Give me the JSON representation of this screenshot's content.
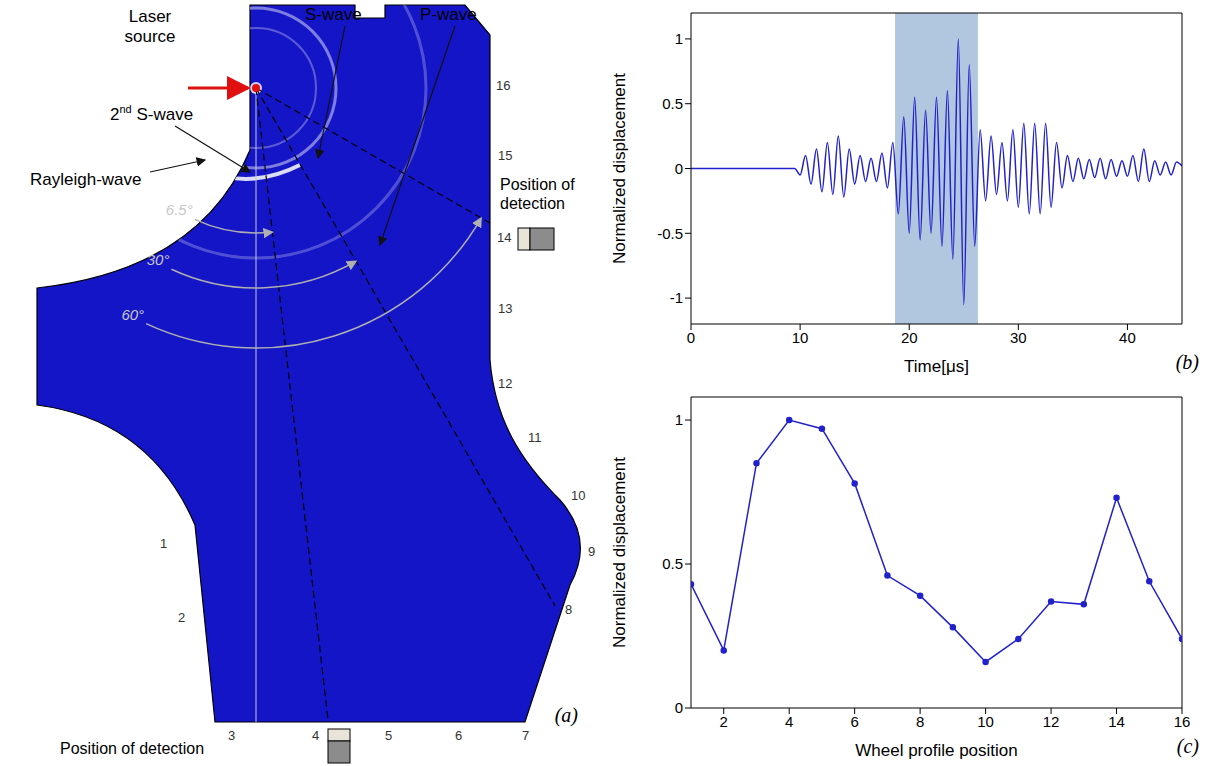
{
  "diagram": {
    "panel_label": "(a)",
    "laser_source": "Laser source",
    "waves": {
      "s_wave": "S-wave",
      "p_wave": "P-wave",
      "second_s_wave": "2nd S-wave",
      "rayleigh_wave": "Rayleigh-wave"
    },
    "angles": [
      {
        "value": 6.5,
        "label": "6.5°"
      },
      {
        "value": 30,
        "label": "30°"
      },
      {
        "value": 60,
        "label": "60°"
      }
    ],
    "profile_positions": [
      1,
      2,
      3,
      4,
      5,
      6,
      7,
      8,
      9,
      10,
      11,
      12,
      13,
      14,
      15,
      16
    ],
    "detection_labels": [
      "Position of detection",
      "Position of detection"
    ]
  },
  "chart_data": [
    {
      "panel_label": "(b)",
      "type": "line",
      "color": "#2222cc",
      "x_label": "Time[μs]",
      "y_label": "Normalized displacement",
      "x": [
        0,
        0.5,
        1,
        1.5,
        2,
        2.5,
        3,
        3.5,
        4,
        4.5,
        5,
        5.5,
        6,
        6.5,
        7,
        7.5,
        8,
        8.5,
        9,
        9.5,
        10,
        10.5,
        11,
        11.5,
        12,
        12.5,
        13,
        13.5,
        14,
        14.5,
        15,
        15.5,
        16,
        16.5,
        17,
        17.5,
        18,
        18.5,
        19,
        19.5,
        20,
        20.5,
        21,
        21.5,
        22,
        22.5,
        23,
        23.5,
        24,
        24.5,
        25,
        25.5,
        26,
        26.5,
        27,
        27.5,
        28,
        28.5,
        29,
        29.5,
        30,
        30.5,
        31,
        31.5,
        32,
        32.5,
        33,
        33.5,
        34,
        34.5,
        35,
        35.5,
        36,
        36.5,
        37,
        37.5,
        38,
        38.5,
        39,
        39.5,
        40,
        40.5,
        41,
        41.5,
        42,
        42.5,
        43,
        43.5,
        44,
        44.5,
        45
      ],
      "values": [
        0,
        0,
        0,
        0,
        0,
        0,
        0,
        0,
        0,
        0,
        0,
        0,
        0,
        0,
        0,
        0,
        0,
        0,
        0,
        0,
        -0.05,
        0.1,
        -0.12,
        0.15,
        -0.18,
        0.2,
        -0.2,
        0.25,
        -0.22,
        0.15,
        -0.12,
        0.1,
        -0.1,
        0.08,
        -0.1,
        0.12,
        -0.15,
        0.2,
        -0.35,
        0.4,
        -0.5,
        0.55,
        -0.55,
        0.45,
        -0.5,
        0.55,
        -0.6,
        0.6,
        -0.7,
        1.0,
        -1.05,
        0.8,
        -0.6,
        0.3,
        -0.25,
        0.25,
        -0.2,
        0.2,
        -0.25,
        0.3,
        -0.3,
        0.35,
        -0.35,
        0.35,
        -0.35,
        0.35,
        -0.3,
        0.2,
        -0.15,
        0.1,
        -0.1,
        0.08,
        -0.08,
        0.07,
        -0.07,
        0.08,
        -0.08,
        0.07,
        -0.06,
        0.06,
        -0.06,
        0.1,
        -0.1,
        0.15,
        -0.1,
        0.06,
        -0.05,
        0.05,
        -0.05,
        0.05,
        0.02
      ],
      "highlight": [
        18.7,
        26.3
      ],
      "xlim": [
        0,
        45
      ],
      "xticks": [
        0,
        10,
        20,
        30,
        40
      ],
      "ylim": [
        -1.2,
        1.2
      ],
      "yticks": [
        -1,
        -0.5,
        0,
        0.5,
        1
      ]
    },
    {
      "panel_label": "(c)",
      "type": "line",
      "color": "#2222cc",
      "marker": "circle",
      "x_label": "Wheel profile position",
      "y_label": "Normalized displacement",
      "x": [
        1,
        2,
        3,
        4,
        5,
        6,
        7,
        8,
        9,
        10,
        11,
        12,
        13,
        14,
        15,
        16
      ],
      "values": [
        0.43,
        0.2,
        0.85,
        1.0,
        0.97,
        0.78,
        0.46,
        0.39,
        0.28,
        0.16,
        0.24,
        0.37,
        0.36,
        0.73,
        0.44,
        0.24
      ],
      "xlim": [
        1,
        16
      ],
      "xticks": [
        2,
        4,
        6,
        8,
        10,
        12,
        14,
        16
      ],
      "ylim": [
        0,
        1.08
      ],
      "yticks": [
        0,
        0.5,
        1
      ]
    }
  ]
}
